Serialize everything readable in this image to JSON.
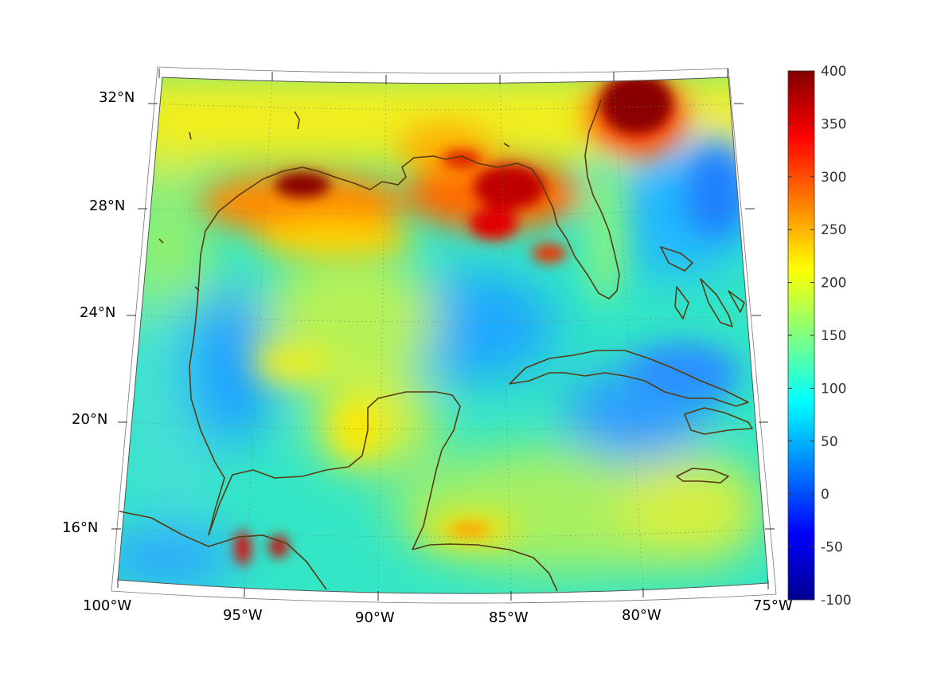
{
  "map": {
    "projection": "conic",
    "lon_range": [
      -100,
      -75
    ],
    "lat_range": [
      14,
      33
    ],
    "lon_ticks": [
      "100°W",
      "95°W",
      "90°W",
      "85°W",
      "80°W",
      "75°W"
    ],
    "lat_ticks": [
      "32°N",
      "28°N",
      "24°N",
      "20°N",
      "16°N"
    ],
    "grid": "dotted",
    "coastline_color": "#5a3a10",
    "colormap": "jet"
  },
  "colorbar": {
    "min": -100,
    "max": 400,
    "ticks": [
      "400",
      "350",
      "300",
      "250",
      "200",
      "150",
      "100",
      "50",
      "0",
      "-50",
      "-100"
    ],
    "colors": [
      "#00008f",
      "#0000ff",
      "#0080ff",
      "#00ffff",
      "#80ff80",
      "#ffff00",
      "#ff8000",
      "#ff0000",
      "#800000"
    ]
  }
}
